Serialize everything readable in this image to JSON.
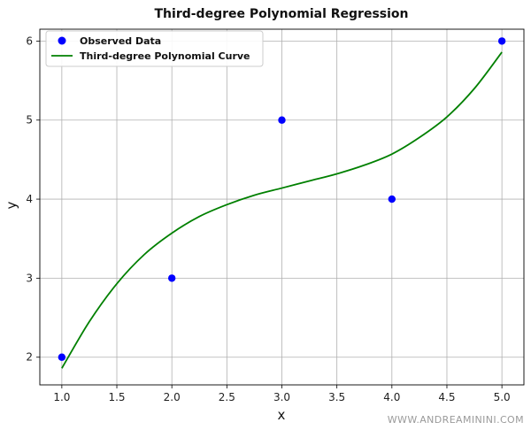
{
  "chart_data": {
    "type": "scatter",
    "title": "Third-degree Polynomial Regression",
    "xlabel": "x",
    "ylabel": "y",
    "xlim": [
      0.8,
      5.2
    ],
    "ylim": [
      1.65,
      6.15
    ],
    "xticks": [
      "1.0",
      "1.5",
      "2.0",
      "2.5",
      "3.0",
      "3.5",
      "4.0",
      "4.5",
      "5.0"
    ],
    "yticks": [
      "2",
      "3",
      "4",
      "5",
      "6"
    ],
    "grid": true,
    "legend_position": "top-left",
    "series": [
      {
        "name": "Observed Data",
        "kind": "scatter",
        "color": "#0000ff",
        "x": [
          1,
          2,
          3,
          4,
          5
        ],
        "y": [
          2,
          3,
          5,
          4,
          6
        ]
      },
      {
        "name": "Third-degree Polynomial Curve",
        "kind": "line",
        "color": "#008000",
        "x": [
          1.0,
          1.25,
          1.5,
          1.75,
          2.0,
          2.25,
          2.5,
          2.75,
          3.0,
          3.25,
          3.5,
          3.75,
          4.0,
          4.25,
          4.5,
          4.75,
          5.0
        ],
        "y": [
          1.86,
          2.45,
          2.93,
          3.3,
          3.57,
          3.78,
          3.93,
          4.05,
          4.14,
          4.23,
          4.32,
          4.43,
          4.57,
          4.78,
          5.04,
          5.4,
          5.86
        ]
      }
    ]
  },
  "watermark": "WWW.ANDREAMININI.COM"
}
